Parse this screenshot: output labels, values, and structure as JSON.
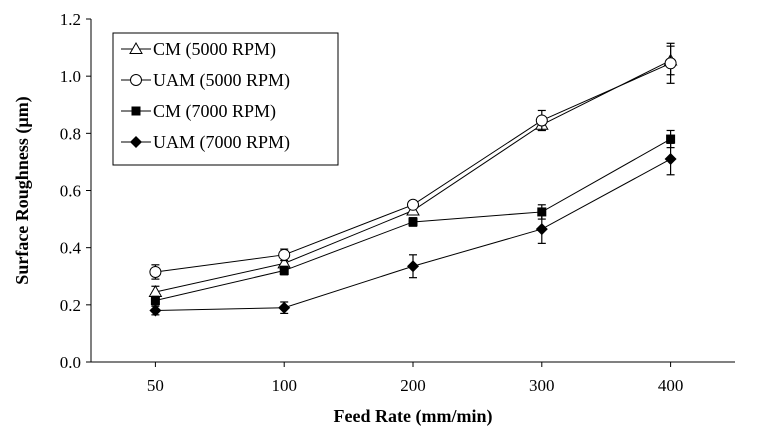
{
  "chart_data": {
    "type": "line",
    "categories": [
      "50",
      "100",
      "200",
      "300",
      "400"
    ],
    "xlabel": "Feed Rate (mm/min)",
    "ylabel": "Surface Roughness (µm)",
    "ylim": [
      0,
      1.2
    ],
    "yticks": [
      "0.0",
      "0.2",
      "0.4",
      "0.6",
      "0.8",
      "1.0",
      "1.2"
    ],
    "grid": false,
    "legend_position": "top-left",
    "series": [
      {
        "name": "CM (5000 RPM)",
        "marker": "triangle-open",
        "values": [
          0.245,
          0.345,
          0.53,
          0.83,
          1.055
        ],
        "errors": [
          0.02,
          0.02,
          0.01,
          0.02,
          0.05
        ]
      },
      {
        "name": "UAM (5000 RPM)",
        "marker": "circle-open",
        "values": [
          0.315,
          0.375,
          0.55,
          0.845,
          1.045
        ],
        "errors": [
          0.025,
          0.02,
          0.01,
          0.035,
          0.07
        ]
      },
      {
        "name": "CM (7000 RPM)",
        "marker": "square-filled",
        "values": [
          0.215,
          0.32,
          0.49,
          0.525,
          0.78
        ],
        "errors": [
          0.015,
          0.015,
          0.015,
          0.025,
          0.03
        ]
      },
      {
        "name": "UAM (7000 RPM)",
        "marker": "diamond-filled",
        "values": [
          0.18,
          0.19,
          0.335,
          0.465,
          0.71
        ],
        "errors": [
          0.015,
          0.02,
          0.04,
          0.05,
          0.055
        ]
      }
    ]
  }
}
